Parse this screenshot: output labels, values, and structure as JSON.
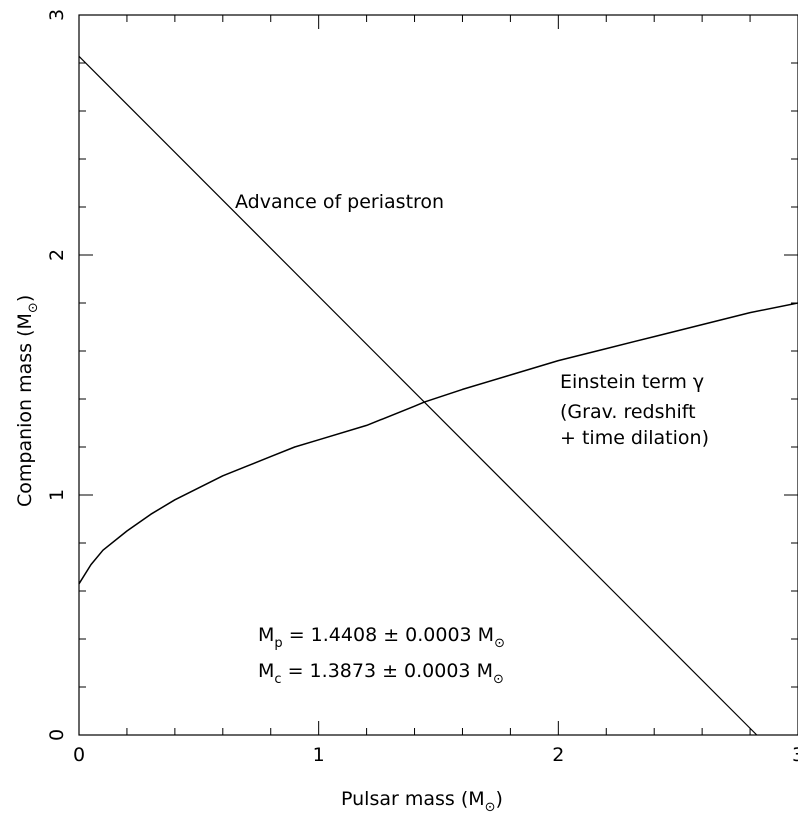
{
  "chart_data": {
    "type": "line",
    "xlabel": "Pulsar mass (M",
    "ylabel": "Companion mass (M",
    "unit_symbol": "⊙",
    "xlim": [
      0,
      3
    ],
    "ylim": [
      0,
      3
    ],
    "x_ticks": [
      "0",
      "1",
      "2",
      "3"
    ],
    "y_ticks": [
      "0",
      "1",
      "2",
      "3"
    ],
    "grid": false,
    "series": [
      {
        "name": "Advance of periastron",
        "x": [
          0,
          2.828
        ],
        "y": [
          2.828,
          0
        ]
      },
      {
        "name": "Einstein term γ",
        "x": [
          0,
          0.05,
          0.1,
          0.2,
          0.3,
          0.4,
          0.5,
          0.6,
          0.7,
          0.8,
          0.9,
          1.0,
          1.2,
          1.4,
          1.4408,
          1.6,
          1.8,
          2.0,
          2.2,
          2.4,
          2.6,
          2.8,
          3.0
        ],
        "y": [
          0.63,
          0.71,
          0.77,
          0.85,
          0.92,
          0.98,
          1.03,
          1.08,
          1.12,
          1.16,
          1.2,
          1.23,
          1.29,
          1.37,
          1.3873,
          1.44,
          1.5,
          1.56,
          1.61,
          1.66,
          1.71,
          1.76,
          1.8
        ]
      }
    ],
    "annotations": {
      "periastron_label": "Advance of periastron",
      "einstein_line1": "Einstein term γ",
      "einstein_line2": "(Grav. redshift",
      "einstein_line3": "+ time dilation)",
      "mp_line": {
        "symbol": "M",
        "subscript": "p",
        "value": " = 1.4408 ± 0.0003 M"
      },
      "mc_line": {
        "symbol": "M",
        "subscript": "c",
        "value": " = 1.3873 ± 0.0003 M"
      }
    }
  }
}
